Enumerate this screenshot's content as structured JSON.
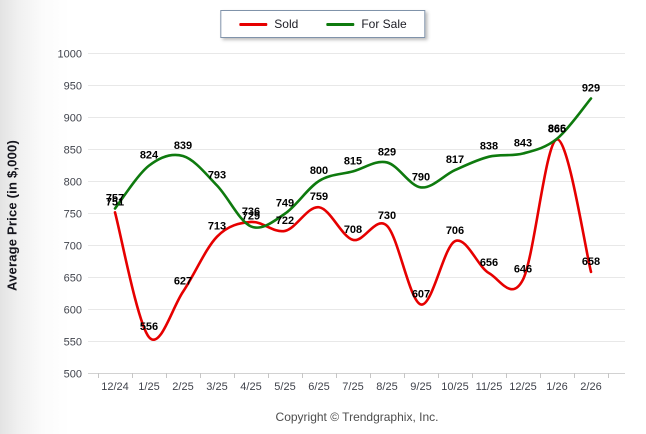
{
  "y_axis_title": "Average Price (in $,000)",
  "footer": {
    "copyright": "Copyright © Trendgraphix, Inc."
  },
  "legend": {
    "items": [
      {
        "label": "Sold",
        "color": "#e60000"
      },
      {
        "label": "For Sale",
        "color": "#0e7a0e"
      }
    ]
  },
  "chart_data": {
    "type": "line",
    "title": "",
    "xlabel": "",
    "ylabel": "Average Price (in $,000)",
    "ylim": [
      500,
      1000
    ],
    "ytick_step": 50,
    "grid": true,
    "smooth": true,
    "data_labels": true,
    "legend_position": "top-center",
    "categories": [
      "12/24",
      "1/25",
      "2/25",
      "3/25",
      "4/25",
      "5/25",
      "6/25",
      "7/25",
      "8/25",
      "9/25",
      "10/25",
      "11/25",
      "12/25",
      "1/26",
      "2/26"
    ],
    "series": [
      {
        "name": "Sold",
        "color": "#e60000",
        "values": [
          751,
          556,
          627,
          713,
          736,
          722,
          759,
          708,
          730,
          607,
          706,
          656,
          646,
          865,
          658
        ]
      },
      {
        "name": "For Sale",
        "color": "#0e7a0e",
        "values": [
          757,
          824,
          839,
          793,
          729,
          749,
          800,
          815,
          829,
          790,
          817,
          838,
          843,
          866,
          929
        ]
      }
    ]
  },
  "style": {
    "gridline_color": "#e8e8e8",
    "axis_line_color": "#d2d2d2",
    "tick_mark_color": "#c6c6c6",
    "tick_label_color": "#40434c",
    "data_label_color": "#000000"
  }
}
